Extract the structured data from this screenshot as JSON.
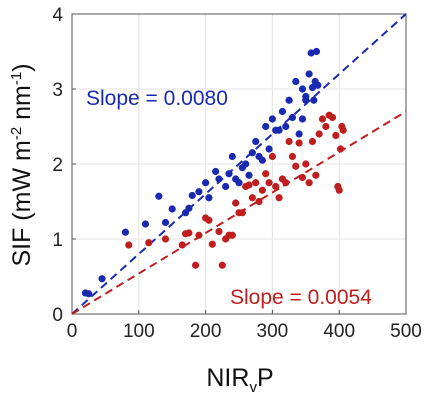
{
  "chart_data": {
    "type": "scatter",
    "xlabel": "NIRvP",
    "xlabel_main": "NIR",
    "xlabel_sub": "v",
    "xlabel_end": "P",
    "ylabel": "SIF (mW m-2 nm-1)",
    "ylabel_parts": {
      "a": "SIF (mW m",
      "b": "-2",
      "c": " nm",
      "d": "-1",
      "e": ")"
    },
    "xlim": [
      0,
      500
    ],
    "ylim": [
      0,
      4
    ],
    "x_ticks": [
      "0",
      "100",
      "200",
      "300",
      "400",
      "500"
    ],
    "x_tick_values": [
      0,
      100,
      200,
      300,
      400,
      500
    ],
    "y_ticks": [
      "0",
      "1",
      "2",
      "3",
      "4"
    ],
    "y_tick_values": [
      0,
      1,
      2,
      3,
      4
    ],
    "grid": true,
    "colors": {
      "blue": "#1a2ab0",
      "red": "#c01e1e",
      "grid": "#e3e3e3",
      "axis": "#555555"
    },
    "annotations": [
      {
        "text": "Slope = 0.0080",
        "color": "#1a2ab0"
      },
      {
        "text": "Slope = 0.0054",
        "color": "#c01e1e"
      }
    ],
    "series": [
      {
        "color": "#1a2ab0",
        "slope": 0.008,
        "points": [
          [
            20,
            0.28
          ],
          [
            25,
            0.27
          ],
          [
            45,
            0.47
          ],
          [
            80,
            1.09
          ],
          [
            110,
            1.2
          ],
          [
            130,
            1.57
          ],
          [
            140,
            1.22
          ],
          [
            150,
            1.4
          ],
          [
            170,
            1.35
          ],
          [
            175,
            1.41
          ],
          [
            180,
            1.58
          ],
          [
            190,
            1.63
          ],
          [
            200,
            1.75
          ],
          [
            205,
            1.55
          ],
          [
            215,
            1.9
          ],
          [
            220,
            1.8
          ],
          [
            230,
            1.7
          ],
          [
            235,
            1.87
          ],
          [
            240,
            2.1
          ],
          [
            245,
            1.8
          ],
          [
            250,
            1.75
          ],
          [
            255,
            1.95
          ],
          [
            260,
            2.0
          ],
          [
            265,
            1.85
          ],
          [
            270,
            2.15
          ],
          [
            275,
            2.3
          ],
          [
            280,
            2.1
          ],
          [
            285,
            2.05
          ],
          [
            290,
            2.5
          ],
          [
            295,
            2.2
          ],
          [
            300,
            2.6
          ],
          [
            305,
            2.45
          ],
          [
            310,
            2.45
          ],
          [
            315,
            2.7
          ],
          [
            320,
            2.5
          ],
          [
            325,
            2.85
          ],
          [
            330,
            2.62
          ],
          [
            335,
            3.1
          ],
          [
            340,
            2.4
          ],
          [
            345,
            2.6
          ],
          [
            350,
            2.9
          ],
          [
            355,
            3.2
          ],
          [
            358,
            3.48
          ],
          [
            360,
            3.02
          ],
          [
            362,
            2.85
          ],
          [
            364,
            3.1
          ],
          [
            366,
            3.5
          ],
          [
            368,
            3.05
          ],
          [
            350,
            2.85
          ],
          [
            345,
            3.0
          ]
        ]
      },
      {
        "color": "#c01e1e",
        "slope": 0.0054,
        "points": [
          [
            85,
            0.92
          ],
          [
            115,
            0.95
          ],
          [
            140,
            1.0
          ],
          [
            165,
            0.92
          ],
          [
            170,
            1.07
          ],
          [
            175,
            1.08
          ],
          [
            185,
            0.65
          ],
          [
            190,
            1.05
          ],
          [
            200,
            1.28
          ],
          [
            205,
            1.25
          ],
          [
            210,
            0.93
          ],
          [
            220,
            1.1
          ],
          [
            225,
            0.65
          ],
          [
            230,
            1.0
          ],
          [
            235,
            1.05
          ],
          [
            240,
            1.05
          ],
          [
            245,
            1.48
          ],
          [
            250,
            1.35
          ],
          [
            255,
            1.35
          ],
          [
            260,
            1.7
          ],
          [
            265,
            1.72
          ],
          [
            270,
            1.55
          ],
          [
            275,
            1.75
          ],
          [
            280,
            1.5
          ],
          [
            285,
            1.65
          ],
          [
            290,
            1.87
          ],
          [
            295,
            1.75
          ],
          [
            300,
            2.1
          ],
          [
            305,
            1.7
          ],
          [
            310,
            1.55
          ],
          [
            315,
            1.8
          ],
          [
            320,
            1.75
          ],
          [
            325,
            2.3
          ],
          [
            330,
            2.1
          ],
          [
            335,
            1.97
          ],
          [
            340,
            2.28
          ],
          [
            345,
            1.82
          ],
          [
            350,
            2.0
          ],
          [
            355,
            1.75
          ],
          [
            360,
            2.3
          ],
          [
            365,
            1.85
          ],
          [
            370,
            2.4
          ],
          [
            375,
            2.6
          ],
          [
            380,
            2.5
          ],
          [
            385,
            2.65
          ],
          [
            390,
            2.62
          ],
          [
            395,
            2.38
          ],
          [
            398,
            1.7
          ],
          [
            400,
            1.65
          ],
          [
            402,
            2.2
          ],
          [
            404,
            2.5
          ],
          [
            406,
            2.45
          ]
        ]
      }
    ]
  }
}
